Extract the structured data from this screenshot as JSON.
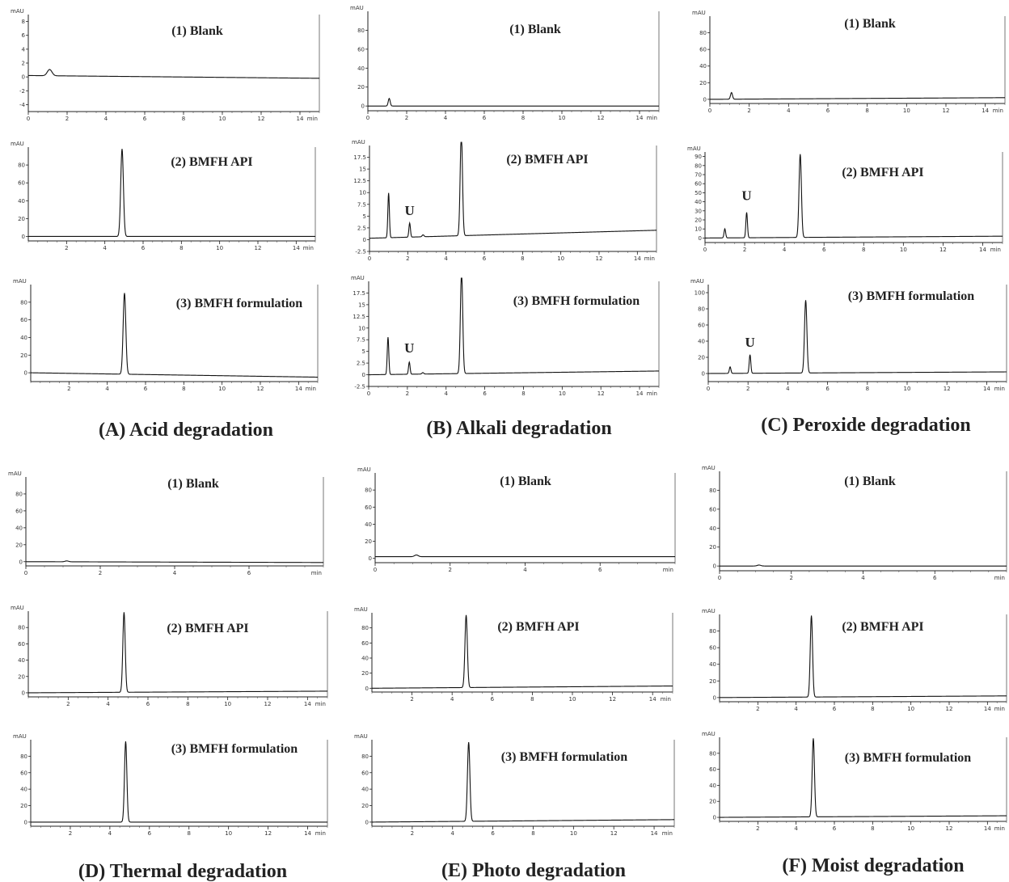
{
  "figure": {
    "group_captions": [
      "(A) Acid degradation",
      "(B) Alkali degradation",
      "(C) Peroxide degradation",
      "(D) Thermal degradation",
      "(E) Photo degradation",
      "(F) Moist degradation"
    ]
  },
  "chart_data": [
    {
      "group": "A",
      "type": "line",
      "title": "(1) Blank",
      "ylabel": "mAU",
      "xunit": "min",
      "xlim": [
        0,
        15
      ],
      "ylim": [
        -5,
        9
      ],
      "yticks": [
        -4,
        -2,
        0,
        2,
        4,
        6,
        8
      ],
      "xticks": [
        0,
        2,
        4,
        6,
        8,
        10,
        12,
        14
      ],
      "baseline": [
        [
          0,
          0.2
        ],
        [
          15,
          -0.2
        ]
      ],
      "peaks": [
        {
          "x": 1.1,
          "y": 0.9,
          "w": 0.12
        }
      ],
      "annotations": []
    },
    {
      "group": "A",
      "type": "line",
      "title": "(2) BMFH API",
      "ylabel": "mAU",
      "xunit": "min",
      "xlim": [
        0,
        15
      ],
      "ylim": [
        -5,
        100
      ],
      "yticks": [
        0,
        20,
        40,
        60,
        80
      ],
      "xticks": [
        2,
        4,
        6,
        8,
        10,
        12,
        14
      ],
      "baseline": [
        [
          0,
          0
        ],
        [
          15,
          0
        ]
      ],
      "peaks": [
        {
          "x": 4.9,
          "y": 98,
          "w": 0.07
        }
      ],
      "annotations": []
    },
    {
      "group": "A",
      "type": "line",
      "title": "(3) BMFH formulation",
      "ylabel": "mAU",
      "xunit": "min",
      "xlim": [
        0,
        15
      ],
      "ylim": [
        -10,
        100
      ],
      "yticks": [
        0,
        20,
        40,
        60,
        80
      ],
      "xticks": [
        2,
        4,
        6,
        8,
        10,
        12,
        14
      ],
      "baseline": [
        [
          0,
          0
        ],
        [
          15,
          -5
        ]
      ],
      "peaks": [
        {
          "x": 4.9,
          "y": 92,
          "w": 0.07
        }
      ],
      "annotations": []
    },
    {
      "group": "B",
      "type": "line",
      "title": "(1) Blank",
      "ylabel": "mAU",
      "xunit": "min",
      "xlim": [
        0,
        15
      ],
      "ylim": [
        -5,
        100
      ],
      "yticks": [
        0,
        20,
        40,
        60,
        80
      ],
      "xticks": [
        0,
        2,
        4,
        6,
        8,
        10,
        12,
        14
      ],
      "baseline": [
        [
          0,
          0
        ],
        [
          15,
          0
        ]
      ],
      "peaks": [
        {
          "x": 1.1,
          "y": 8,
          "w": 0.05
        }
      ],
      "annotations": []
    },
    {
      "group": "B",
      "type": "line",
      "title": "(2) BMFH API",
      "ylabel": "mAU",
      "xunit": "min",
      "xlim": [
        0,
        15
      ],
      "ylim": [
        -2.5,
        20
      ],
      "yticks": [
        -2.5,
        0,
        2.5,
        5,
        7.5,
        10,
        12.5,
        15,
        17.5
      ],
      "xticks": [
        0,
        2,
        4,
        6,
        8,
        10,
        12,
        14
      ],
      "baseline": [
        [
          0,
          0.3
        ],
        [
          15,
          2.0
        ]
      ],
      "peaks": [
        {
          "x": 1.0,
          "y": 9.5,
          "w": 0.04
        },
        {
          "x": 2.1,
          "y": 3.0,
          "w": 0.04
        },
        {
          "x": 2.8,
          "y": 0.4,
          "w": 0.05
        },
        {
          "x": 4.8,
          "y": 22,
          "w": 0.06
        }
      ],
      "annotations": [
        {
          "text": "U",
          "x": 2.1,
          "y": 5.2
        }
      ]
    },
    {
      "group": "B",
      "type": "line",
      "title": "(3) BMFH formulation",
      "ylabel": "mAU",
      "xunit": "min",
      "xlim": [
        0,
        15
      ],
      "ylim": [
        -2.5,
        20
      ],
      "yticks": [
        -2.5,
        0,
        2.5,
        5,
        7.5,
        10,
        12.5,
        15,
        17.5
      ],
      "xticks": [
        0,
        2,
        4,
        6,
        8,
        10,
        12,
        14
      ],
      "baseline": [
        [
          0,
          0
        ],
        [
          15,
          0.8
        ]
      ],
      "peaks": [
        {
          "x": 1.0,
          "y": 8,
          "w": 0.04
        },
        {
          "x": 2.1,
          "y": 2.6,
          "w": 0.04
        },
        {
          "x": 2.8,
          "y": 0.3,
          "w": 0.05
        },
        {
          "x": 4.8,
          "y": 22,
          "w": 0.06
        }
      ],
      "annotations": [
        {
          "text": "U",
          "x": 2.1,
          "y": 4.8
        }
      ]
    },
    {
      "group": "C",
      "type": "line",
      "title": "(1) Blank",
      "ylabel": "mAU",
      "xunit": "min",
      "xlim": [
        0,
        15
      ],
      "ylim": [
        -5,
        100
      ],
      "yticks": [
        0,
        20,
        40,
        60,
        80
      ],
      "xticks": [
        0,
        2,
        4,
        6,
        8,
        10,
        12,
        14
      ],
      "baseline": [
        [
          0,
          0
        ],
        [
          15,
          2
        ]
      ],
      "peaks": [
        {
          "x": 1.1,
          "y": 8,
          "w": 0.05
        }
      ],
      "annotations": []
    },
    {
      "group": "C",
      "type": "line",
      "title": "(2) BMFH API",
      "ylabel": "mAU",
      "xunit": "min",
      "xlim": [
        0,
        15
      ],
      "ylim": [
        -5,
        95
      ],
      "yticks": [
        0,
        10,
        20,
        30,
        40,
        50,
        60,
        70,
        80,
        90
      ],
      "xticks": [
        0,
        2,
        4,
        6,
        8,
        10,
        12,
        14
      ],
      "baseline": [
        [
          0,
          0
        ],
        [
          15,
          2
        ]
      ],
      "peaks": [
        {
          "x": 1.0,
          "y": 10,
          "w": 0.04
        },
        {
          "x": 2.1,
          "y": 28,
          "w": 0.04
        },
        {
          "x": 4.8,
          "y": 92,
          "w": 0.06
        }
      ],
      "annotations": [
        {
          "text": "U",
          "x": 2.1,
          "y": 42
        }
      ]
    },
    {
      "group": "C",
      "type": "line",
      "title": "(3) BMFH formulation",
      "ylabel": "mAU",
      "xunit": "min",
      "xlim": [
        0,
        15
      ],
      "ylim": [
        -10,
        110
      ],
      "yticks": [
        0,
        20,
        40,
        60,
        80,
        100
      ],
      "xticks": [
        0,
        2,
        4,
        6,
        8,
        10,
        12,
        14
      ],
      "baseline": [
        [
          0,
          0
        ],
        [
          15,
          2
        ]
      ],
      "peaks": [
        {
          "x": 1.1,
          "y": 8,
          "w": 0.04
        },
        {
          "x": 2.1,
          "y": 23,
          "w": 0.04
        },
        {
          "x": 4.9,
          "y": 90,
          "w": 0.06
        }
      ],
      "annotations": [
        {
          "text": "U",
          "x": 2.1,
          "y": 33
        }
      ]
    },
    {
      "group": "D",
      "type": "line",
      "title": "(1) Blank",
      "ylabel": "mAU",
      "xunit": "min",
      "xlim": [
        0,
        8
      ],
      "ylim": [
        -5,
        100
      ],
      "yticks": [
        0,
        20,
        40,
        60,
        80
      ],
      "xticks": [
        0,
        2,
        4,
        6
      ],
      "baseline": [
        [
          0,
          0
        ],
        [
          8,
          -1
        ]
      ],
      "peaks": [
        {
          "x": 1.1,
          "y": 1,
          "w": 0.05
        }
      ],
      "annotations": []
    },
    {
      "group": "D",
      "type": "line",
      "title": "(2) BMFH API",
      "ylabel": "mAU",
      "xunit": "min",
      "xlim": [
        0,
        15
      ],
      "ylim": [
        -5,
        100
      ],
      "yticks": [
        0,
        20,
        40,
        60,
        80
      ],
      "xticks": [
        2,
        4,
        6,
        8,
        10,
        12,
        14
      ],
      "baseline": [
        [
          0,
          0
        ],
        [
          15,
          2
        ]
      ],
      "peaks": [
        {
          "x": 4.8,
          "y": 98,
          "w": 0.06
        }
      ],
      "annotations": []
    },
    {
      "group": "D",
      "type": "line",
      "title": "(3) BMFH formulation",
      "ylabel": "mAU",
      "xunit": "min",
      "xlim": [
        0,
        15
      ],
      "ylim": [
        -5,
        100
      ],
      "yticks": [
        0,
        20,
        40,
        60,
        80
      ],
      "xticks": [
        2,
        4,
        6,
        8,
        10,
        12,
        14
      ],
      "baseline": [
        [
          0,
          0
        ],
        [
          15,
          0
        ]
      ],
      "peaks": [
        {
          "x": 4.8,
          "y": 98,
          "w": 0.06
        }
      ],
      "annotations": []
    },
    {
      "group": "E",
      "type": "line",
      "title": "(1) Blank",
      "ylabel": "mAU",
      "xunit": "min",
      "xlim": [
        0,
        8
      ],
      "ylim": [
        -5,
        100
      ],
      "yticks": [
        0,
        20,
        40,
        60,
        80
      ],
      "xticks": [
        0,
        2,
        4,
        6
      ],
      "baseline": [
        [
          0,
          2
        ],
        [
          8,
          2
        ]
      ],
      "peaks": [
        {
          "x": 1.1,
          "y": 2,
          "w": 0.05
        }
      ],
      "annotations": []
    },
    {
      "group": "E",
      "type": "line",
      "title": "(2) BMFH API",
      "ylabel": "mAU",
      "xunit": "min",
      "xlim": [
        0,
        15
      ],
      "ylim": [
        -5,
        100
      ],
      "yticks": [
        0,
        20,
        40,
        60,
        80
      ],
      "xticks": [
        2,
        4,
        6,
        8,
        10,
        12,
        14
      ],
      "baseline": [
        [
          0,
          0
        ],
        [
          15,
          3
        ]
      ],
      "peaks": [
        {
          "x": 4.7,
          "y": 96,
          "w": 0.06
        }
      ],
      "annotations": []
    },
    {
      "group": "E",
      "type": "line",
      "title": "(3) BMFH formulation",
      "ylabel": "mAU",
      "xunit": "min",
      "xlim": [
        0,
        15
      ],
      "ylim": [
        -5,
        100
      ],
      "yticks": [
        0,
        20,
        40,
        60,
        80
      ],
      "xticks": [
        2,
        4,
        6,
        8,
        10,
        12,
        14
      ],
      "baseline": [
        [
          0,
          0
        ],
        [
          15,
          3
        ]
      ],
      "peaks": [
        {
          "x": 4.8,
          "y": 96,
          "w": 0.06
        }
      ],
      "annotations": []
    },
    {
      "group": "F",
      "type": "line",
      "title": "(1) Blank",
      "ylabel": "mAU",
      "xunit": "min",
      "xlim": [
        0,
        8
      ],
      "ylim": [
        -5,
        100
      ],
      "yticks": [
        0,
        20,
        40,
        60,
        80
      ],
      "xticks": [
        0,
        2,
        4,
        6
      ],
      "baseline": [
        [
          0,
          0
        ],
        [
          8,
          0
        ]
      ],
      "peaks": [
        {
          "x": 1.1,
          "y": 1,
          "w": 0.05
        }
      ],
      "annotations": []
    },
    {
      "group": "F",
      "type": "line",
      "title": "(2) BMFH API",
      "ylabel": "mAU",
      "xunit": "min",
      "xlim": [
        0,
        15
      ],
      "ylim": [
        -5,
        100
      ],
      "yticks": [
        0,
        20,
        40,
        60,
        80
      ],
      "xticks": [
        2,
        4,
        6,
        8,
        10,
        12,
        14
      ],
      "baseline": [
        [
          0,
          0
        ],
        [
          15,
          2
        ]
      ],
      "peaks": [
        {
          "x": 4.8,
          "y": 98,
          "w": 0.06
        }
      ],
      "annotations": []
    },
    {
      "group": "F",
      "type": "line",
      "title": "(3) BMFH formulation",
      "ylabel": "mAU",
      "xunit": "min",
      "xlim": [
        0,
        15
      ],
      "ylim": [
        -5,
        100
      ],
      "yticks": [
        0,
        20,
        40,
        60,
        80
      ],
      "xticks": [
        2,
        4,
        6,
        8,
        10,
        12,
        14
      ],
      "baseline": [
        [
          0,
          0
        ],
        [
          15,
          2
        ]
      ],
      "peaks": [
        {
          "x": 4.9,
          "y": 98,
          "w": 0.06
        }
      ],
      "annotations": []
    }
  ]
}
